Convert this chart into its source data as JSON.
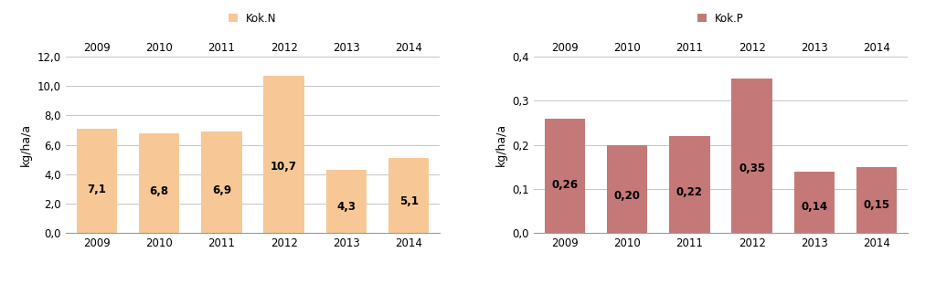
{
  "left_chart": {
    "years": [
      "2009",
      "2010",
      "2011",
      "2012",
      "2013",
      "2014"
    ],
    "values": [
      7.1,
      6.8,
      6.9,
      10.7,
      4.3,
      5.1
    ],
    "bar_color": "#F7C896",
    "bar_edge_color": "#F7C896",
    "legend_label": "Kok.N",
    "legend_color": "#F7C896",
    "ylabel": "kg/ha/a",
    "ylim": [
      0,
      12.0
    ],
    "yticks": [
      0.0,
      2.0,
      4.0,
      6.0,
      8.0,
      10.0,
      12.0
    ],
    "ytick_labels": [
      "0,0",
      "2,0",
      "4,0",
      "6,0",
      "8,0",
      "10,0",
      "12,0"
    ]
  },
  "right_chart": {
    "years": [
      "2009",
      "2010",
      "2011",
      "2012",
      "2013",
      "2014"
    ],
    "values": [
      0.26,
      0.2,
      0.22,
      0.35,
      0.14,
      0.15
    ],
    "bar_color": "#C47878",
    "bar_edge_color": "#C47878",
    "legend_label": "Kok.P",
    "legend_color": "#C47878",
    "ylabel": "kg/ha/a",
    "ylim": [
      0,
      0.4
    ],
    "yticks": [
      0.0,
      0.1,
      0.2,
      0.3,
      0.4
    ],
    "ytick_labels": [
      "0,0",
      "0,1",
      "0,2",
      "0,3",
      "0,4"
    ]
  },
  "background_color": "#FFFFFF",
  "grid_color": "#BBBBBB",
  "label_fontsize": 9,
  "tick_fontsize": 8.5,
  "bar_label_fontsize": 8.5,
  "legend_fontsize": 8.5
}
